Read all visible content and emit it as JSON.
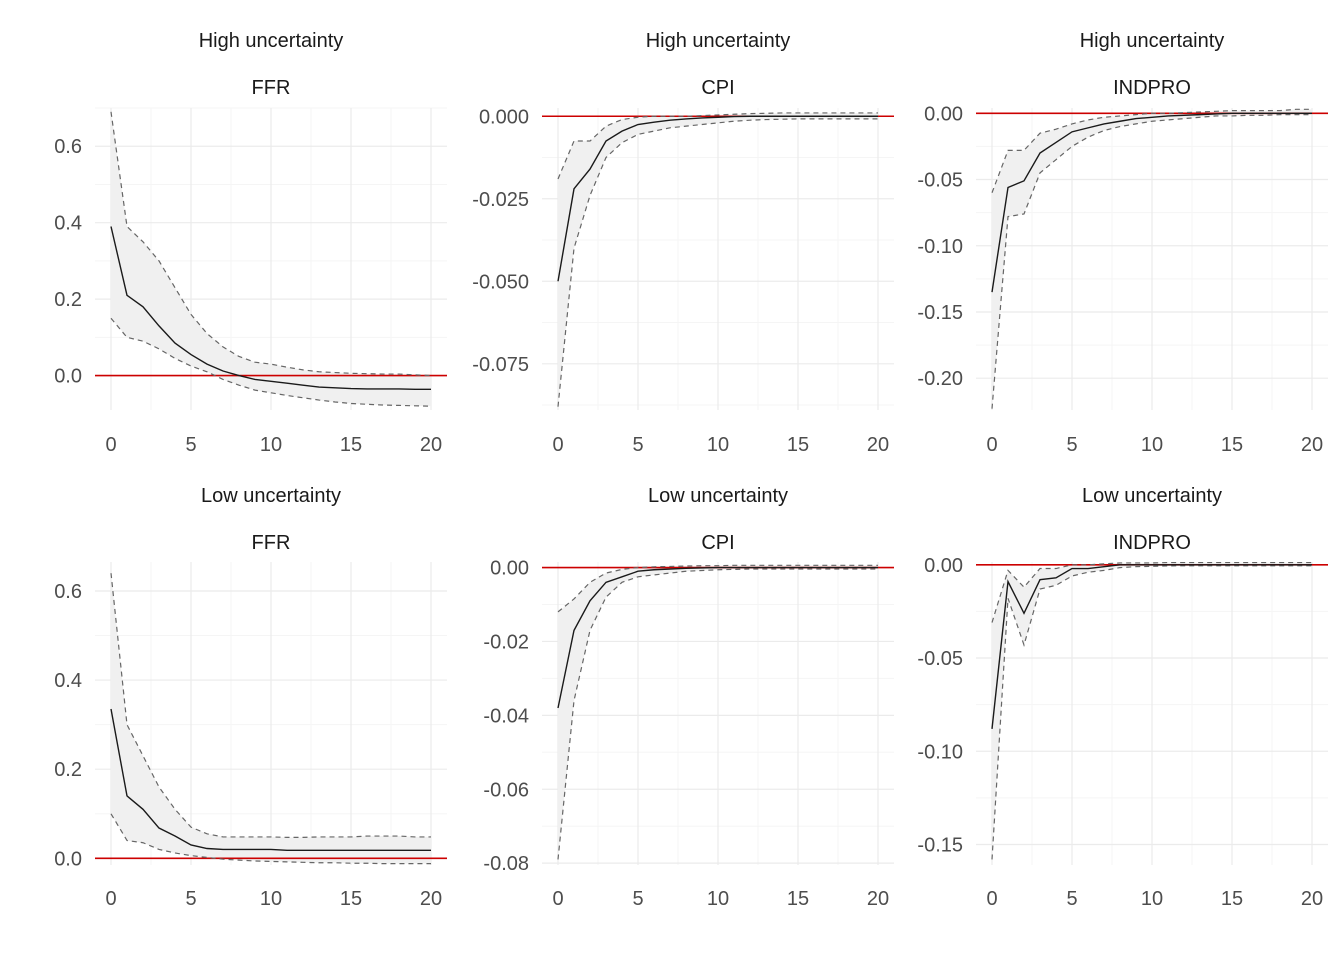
{
  "colors": {
    "background": "#ffffff",
    "grid_major": "#ebebeb",
    "grid_minor": "#f5f5f5",
    "band_fill": "#f0f0f0",
    "line": "#1a1a1a",
    "bounds": "#666666",
    "zero_line": "#cc0000",
    "tick_text": "#4d4d4d",
    "title_text": "#1a1a1a"
  },
  "chart_data": [
    {
      "type": "line",
      "title": "High uncertainty",
      "subtitle": "FFR",
      "xlim": [
        0,
        20
      ],
      "ylim": [
        -0.09,
        0.7
      ],
      "xticks": [
        0,
        5,
        10,
        15,
        20
      ],
      "xtick_labels": [
        "0",
        "5",
        "10",
        "15",
        "20"
      ],
      "yticks": [
        0.0,
        0.2,
        0.4,
        0.6
      ],
      "ytick_labels": [
        "0.0",
        "0.2",
        "0.4",
        "0.6"
      ],
      "reference_line": 0,
      "x": [
        0,
        1,
        2,
        3,
        4,
        5,
        6,
        7,
        8,
        9,
        10,
        11,
        12,
        13,
        14,
        15,
        16,
        17,
        18,
        19,
        20
      ],
      "series": [
        {
          "role": "estimate",
          "values": [
            0.39,
            0.21,
            0.18,
            0.13,
            0.085,
            0.055,
            0.03,
            0.012,
            0.0,
            -0.01,
            -0.015,
            -0.02,
            -0.025,
            -0.03,
            -0.032,
            -0.034,
            -0.035,
            -0.035,
            -0.035,
            -0.036,
            -0.036
          ]
        },
        {
          "role": "upper",
          "values": [
            0.69,
            0.39,
            0.35,
            0.3,
            0.23,
            0.16,
            0.11,
            0.075,
            0.05,
            0.035,
            0.03,
            0.022,
            0.015,
            0.01,
            0.008,
            0.006,
            0.005,
            0.004,
            0.004,
            0.002,
            0.0
          ]
        },
        {
          "role": "lower",
          "values": [
            0.15,
            0.1,
            0.09,
            0.07,
            0.045,
            0.025,
            0.01,
            -0.01,
            -0.025,
            -0.038,
            -0.045,
            -0.052,
            -0.058,
            -0.064,
            -0.069,
            -0.073,
            -0.075,
            -0.077,
            -0.078,
            -0.079,
            -0.08
          ]
        }
      ]
    },
    {
      "type": "line",
      "title": "High uncertainty",
      "subtitle": "CPI",
      "xlim": [
        0,
        20
      ],
      "ylim": [
        -0.089,
        0.0025
      ],
      "xticks": [
        0,
        5,
        10,
        15,
        20
      ],
      "xtick_labels": [
        "0",
        "5",
        "10",
        "15",
        "20"
      ],
      "yticks": [
        0.0,
        -0.025,
        -0.05,
        -0.075
      ],
      "ytick_labels": [
        "0.000",
        "-0.025",
        "-0.050",
        "-0.075"
      ],
      "reference_line": 0,
      "x": [
        0,
        1,
        2,
        3,
        4,
        5,
        6,
        7,
        8,
        9,
        10,
        11,
        12,
        13,
        14,
        15,
        16,
        17,
        18,
        19,
        20
      ],
      "series": [
        {
          "role": "estimate",
          "values": [
            -0.05,
            -0.022,
            -0.016,
            -0.0075,
            -0.0045,
            -0.0025,
            -0.0018,
            -0.0012,
            -0.0008,
            -0.0005,
            -0.0003,
            -0.0001,
            0.0,
            0.0,
            0.0,
            0.0,
            0.0,
            0.0,
            0.0,
            0.0,
            0.0
          ]
        },
        {
          "role": "upper",
          "values": [
            -0.019,
            -0.0075,
            -0.0075,
            -0.003,
            -0.001,
            -0.0003,
            0.0,
            0.0,
            0.0,
            0.0002,
            0.0004,
            0.0006,
            0.0008,
            0.0009,
            0.001,
            0.001,
            0.001,
            0.001,
            0.001,
            0.001,
            0.001
          ]
        },
        {
          "role": "lower",
          "values": [
            -0.088,
            -0.04,
            -0.024,
            -0.0125,
            -0.008,
            -0.0055,
            -0.0045,
            -0.0035,
            -0.003,
            -0.0025,
            -0.002,
            -0.0015,
            -0.0012,
            -0.001,
            -0.0009,
            -0.0008,
            -0.0008,
            -0.0008,
            -0.0008,
            -0.0008,
            -0.0008
          ]
        }
      ]
    },
    {
      "type": "line",
      "title": "High uncertainty",
      "subtitle": "INDPRO",
      "xlim": [
        0,
        20
      ],
      "ylim": [
        -0.224,
        0.004
      ],
      "xticks": [
        0,
        5,
        10,
        15,
        20
      ],
      "xtick_labels": [
        "0",
        "5",
        "10",
        "15",
        "20"
      ],
      "yticks": [
        0.0,
        -0.05,
        -0.1,
        -0.15,
        -0.2
      ],
      "ytick_labels": [
        "0.00",
        "-0.05",
        "-0.10",
        "-0.15",
        "-0.20"
      ],
      "reference_line": 0,
      "x": [
        0,
        1,
        2,
        3,
        4,
        5,
        6,
        7,
        8,
        9,
        10,
        11,
        12,
        13,
        14,
        15,
        16,
        17,
        18,
        19,
        20
      ],
      "series": [
        {
          "role": "estimate",
          "values": [
            -0.135,
            -0.056,
            -0.051,
            -0.03,
            -0.022,
            -0.014,
            -0.011,
            -0.008,
            -0.006,
            -0.004,
            -0.003,
            -0.002,
            -0.0015,
            -0.001,
            -0.0005,
            0.0,
            0.0,
            0.0,
            0.0,
            0.0,
            0.0
          ]
        },
        {
          "role": "upper",
          "values": [
            -0.06,
            -0.028,
            -0.028,
            -0.015,
            -0.012,
            -0.008,
            -0.005,
            -0.003,
            -0.002,
            -0.001,
            0.0,
            0.0,
            0.0005,
            0.001,
            0.0015,
            0.002,
            0.002,
            0.002,
            0.002,
            0.003,
            0.003
          ]
        },
        {
          "role": "lower",
          "values": [
            -0.223,
            -0.078,
            -0.076,
            -0.045,
            -0.035,
            -0.025,
            -0.018,
            -0.013,
            -0.01,
            -0.008,
            -0.006,
            -0.005,
            -0.004,
            -0.003,
            -0.002,
            -0.002,
            -0.0015,
            -0.0015,
            -0.001,
            -0.001,
            -0.001
          ]
        }
      ]
    },
    {
      "type": "line",
      "title": "Low uncertainty",
      "subtitle": "FFR",
      "xlim": [
        0,
        20
      ],
      "ylim": [
        -0.015,
        0.665
      ],
      "xticks": [
        0,
        5,
        10,
        15,
        20
      ],
      "xtick_labels": [
        "0",
        "5",
        "10",
        "15",
        "20"
      ],
      "yticks": [
        0.0,
        0.2,
        0.4,
        0.6
      ],
      "ytick_labels": [
        "0.0",
        "0.2",
        "0.4",
        "0.6"
      ],
      "reference_line": 0,
      "x": [
        0,
        1,
        2,
        3,
        4,
        5,
        6,
        7,
        8,
        9,
        10,
        11,
        12,
        13,
        14,
        15,
        16,
        17,
        18,
        19,
        20
      ],
      "series": [
        {
          "role": "estimate",
          "values": [
            0.335,
            0.14,
            0.11,
            0.068,
            0.05,
            0.03,
            0.022,
            0.02,
            0.02,
            0.02,
            0.02,
            0.018,
            0.018,
            0.018,
            0.018,
            0.018,
            0.018,
            0.018,
            0.018,
            0.018,
            0.018
          ]
        },
        {
          "role": "upper",
          "values": [
            0.64,
            0.3,
            0.23,
            0.16,
            0.11,
            0.07,
            0.055,
            0.048,
            0.048,
            0.048,
            0.048,
            0.047,
            0.047,
            0.048,
            0.048,
            0.048,
            0.05,
            0.05,
            0.05,
            0.048,
            0.048
          ]
        },
        {
          "role": "lower",
          "values": [
            0.1,
            0.04,
            0.035,
            0.02,
            0.012,
            0.006,
            0.002,
            -0.002,
            -0.004,
            -0.006,
            -0.007,
            -0.008,
            -0.009,
            -0.01,
            -0.01,
            -0.011,
            -0.011,
            -0.012,
            -0.012,
            -0.012,
            -0.012
          ]
        }
      ]
    },
    {
      "type": "line",
      "title": "Low uncertainty",
      "subtitle": "CPI",
      "xlim": [
        0,
        20
      ],
      "ylim": [
        -0.0805,
        0.0015
      ],
      "xticks": [
        0,
        5,
        10,
        15,
        20
      ],
      "xtick_labels": [
        "0",
        "5",
        "10",
        "15",
        "20"
      ],
      "yticks": [
        0.0,
        -0.02,
        -0.04,
        -0.06,
        -0.08
      ],
      "ytick_labels": [
        "0.00",
        "-0.02",
        "-0.04",
        "-0.06",
        "-0.08"
      ],
      "reference_line": 0,
      "x": [
        0,
        1,
        2,
        3,
        4,
        5,
        6,
        7,
        8,
        9,
        10,
        11,
        12,
        13,
        14,
        15,
        16,
        17,
        18,
        19,
        20
      ],
      "series": [
        {
          "role": "estimate",
          "values": [
            -0.038,
            -0.017,
            -0.009,
            -0.004,
            -0.0025,
            -0.001,
            -0.0006,
            -0.0004,
            -0.0002,
            -0.0001,
            0.0,
            0.0,
            0.0,
            0.0,
            0.0,
            0.0,
            0.0,
            0.0,
            0.0,
            0.0,
            0.0
          ]
        },
        {
          "role": "upper",
          "values": [
            -0.012,
            -0.0085,
            -0.004,
            -0.0015,
            -0.0005,
            0.0,
            0.0002,
            0.0003,
            0.0004,
            0.0005,
            0.0005,
            0.0006,
            0.0006,
            0.0006,
            0.0006,
            0.0006,
            0.0006,
            0.0006,
            0.0006,
            0.0006,
            0.0006
          ]
        },
        {
          "role": "lower",
          "values": [
            -0.079,
            -0.036,
            -0.017,
            -0.008,
            -0.004,
            -0.0025,
            -0.002,
            -0.0015,
            -0.001,
            -0.0008,
            -0.0006,
            -0.0005,
            -0.0004,
            -0.0004,
            -0.0004,
            -0.0004,
            -0.0004,
            -0.0004,
            -0.0004,
            -0.0004,
            -0.0004
          ]
        }
      ]
    },
    {
      "type": "line",
      "title": "Low uncertainty",
      "subtitle": "INDPRO",
      "xlim": [
        0,
        20
      ],
      "ylim": [
        -0.161,
        0.0015
      ],
      "xticks": [
        0,
        5,
        10,
        15,
        20
      ],
      "xtick_labels": [
        "0",
        "5",
        "10",
        "15",
        "20"
      ],
      "yticks": [
        0.0,
        -0.05,
        -0.1,
        -0.15
      ],
      "ytick_labels": [
        "0.00",
        "-0.05",
        "-0.10",
        "-0.15"
      ],
      "reference_line": 0,
      "x": [
        0,
        1,
        2,
        3,
        4,
        5,
        6,
        7,
        8,
        9,
        10,
        11,
        12,
        13,
        14,
        15,
        16,
        17,
        18,
        19,
        20
      ],
      "series": [
        {
          "role": "estimate",
          "values": [
            -0.088,
            -0.009,
            -0.026,
            -0.008,
            -0.007,
            -0.002,
            -0.002,
            -0.001,
            0.0,
            0.0,
            0.0,
            0.0,
            0.0,
            0.0,
            0.0,
            0.0,
            0.0,
            0.0,
            0.0,
            0.0,
            0.0
          ]
        },
        {
          "role": "upper",
          "values": [
            -0.031,
            -0.003,
            -0.012,
            -0.002,
            -0.002,
            0.0,
            0.0,
            0.0005,
            0.001,
            0.001,
            0.001,
            0.0012,
            0.0012,
            0.0012,
            0.0012,
            0.0012,
            0.0012,
            0.0012,
            0.0012,
            0.0012,
            0.0012
          ]
        },
        {
          "role": "lower",
          "values": [
            -0.158,
            -0.018,
            -0.043,
            -0.013,
            -0.011,
            -0.006,
            -0.004,
            -0.003,
            -0.0015,
            -0.001,
            -0.0008,
            -0.0006,
            -0.0005,
            -0.0005,
            -0.0005,
            -0.0005,
            -0.0005,
            -0.0005,
            -0.0005,
            -0.0005,
            -0.0005
          ]
        }
      ]
    }
  ]
}
